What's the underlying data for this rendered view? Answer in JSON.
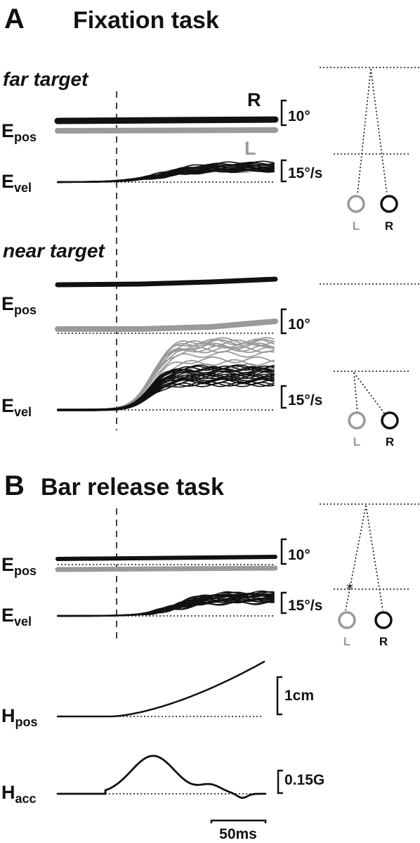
{
  "panel_a": {
    "letter": "A",
    "title": "Fixation task",
    "far": {
      "label": "far target",
      "epos_main": "E",
      "epos_sub": "pos",
      "evel_main": "E",
      "evel_sub": "vel",
      "pos_scale": "10°",
      "vel_scale": "15°/s",
      "right_label": "R",
      "left_label": "L",
      "eye_left": "L",
      "eye_right": "R"
    },
    "near": {
      "label": "near target",
      "epos_main": "E",
      "epos_sub": "pos",
      "evel_main": "E",
      "evel_sub": "vel",
      "pos_scale": "10°",
      "vel_scale": "15°/s",
      "eye_left": "L",
      "eye_right": "R"
    }
  },
  "panel_b": {
    "letter": "B",
    "title": "Bar release task",
    "epos_main": "E",
    "epos_sub": "pos",
    "evel_main": "E",
    "evel_sub": "vel",
    "hpos_main": "H",
    "hpos_sub": "pos",
    "hacc_main": "H",
    "hacc_sub": "acc",
    "pos_scale": "10°",
    "vel_scale": "15°/s",
    "hpos_scale": "1cm",
    "hacc_scale": "0.15G",
    "time_scale": "50ms",
    "eye_left": "L",
    "eye_right": "R"
  },
  "colors": {
    "right_eye": "#111111",
    "left_eye": "#9a9a9a"
  }
}
